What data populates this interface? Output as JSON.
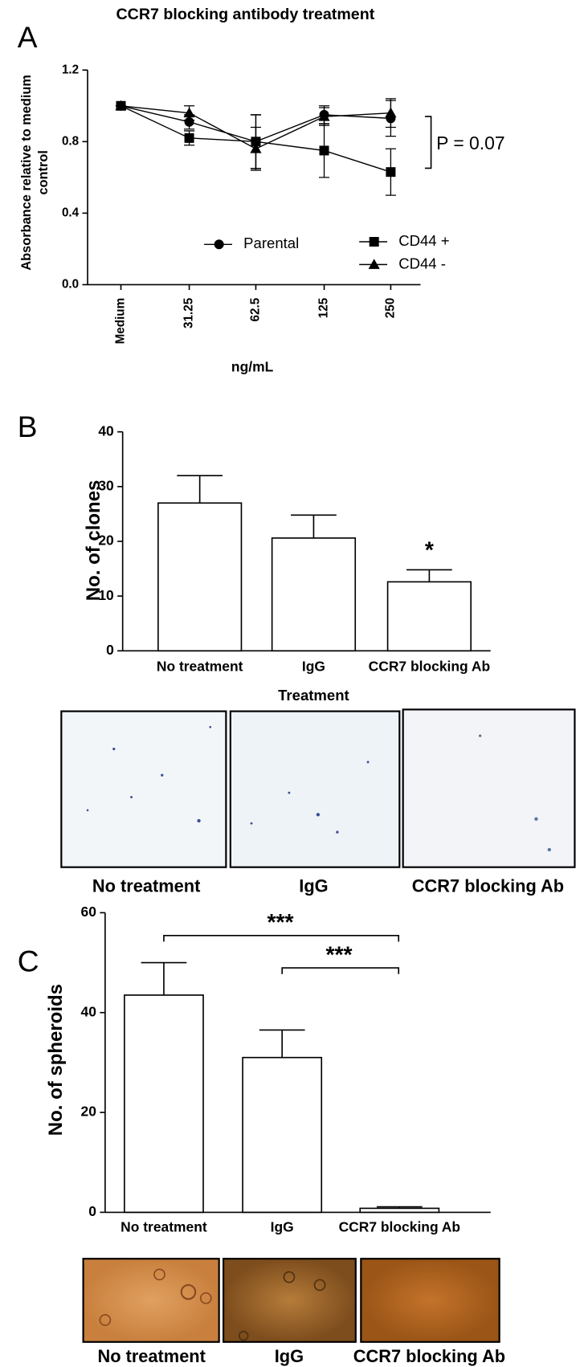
{
  "chart_data": [
    {
      "type": "line",
      "panel": "A",
      "title": "CCR7 blocking antibody treatment",
      "x_label": "ng/mL",
      "y_label": "Absorbance relative to medium control",
      "categories": [
        "Medium",
        "31.25",
        "62.5",
        "125",
        "250"
      ],
      "ylim": [
        0,
        1.2
      ],
      "yticks": [
        {
          "value": 0,
          "label": "0.0"
        },
        0.4,
        0.8,
        1.2
      ],
      "series": [
        {
          "name": "Parental",
          "color": "#000000",
          "marker": "circle",
          "values": [
            1.0,
            0.91,
            0.8,
            0.95,
            0.93
          ],
          "errors": [
            0,
            0.04,
            0.15,
            0.05,
            0.1
          ]
        },
        {
          "name": "CD44 +",
          "color": "#000000",
          "marker": "square",
          "values": [
            1.0,
            0.82,
            0.8,
            0.75,
            0.63
          ],
          "errors": [
            0,
            0.04,
            0.15,
            0.15,
            0.13
          ]
        },
        {
          "name": "CD44 -",
          "color": "#000000",
          "marker": "triangle",
          "values": [
            1.0,
            0.96,
            0.76,
            0.94,
            0.96
          ],
          "errors": [
            0,
            0.04,
            0.12,
            0.05,
            0.08
          ]
        }
      ],
      "annotation": "P = 0.07"
    },
    {
      "type": "bar",
      "panel": "B",
      "x_label": "Treatment",
      "y_label": "No. of clones",
      "categories": [
        "No treatment",
        "IgG",
        "CCR7 blocking Ab"
      ],
      "values": [
        27,
        20.6,
        12.6
      ],
      "errors": [
        5,
        4.2,
        2.2
      ],
      "color": "#ffffff",
      "ylim": [
        0,
        40
      ],
      "yticks": [
        0,
        10,
        20,
        30,
        40
      ],
      "annotations": [
        "*"
      ],
      "images": [
        "No treatment",
        "IgG",
        "CCR7 blocking Ab"
      ]
    },
    {
      "type": "bar",
      "panel": "C",
      "y_label": "No. of spheroids",
      "categories": [
        "No treatment",
        "IgG",
        "CCR7 blocking Ab"
      ],
      "values": [
        43.5,
        31,
        0.8
      ],
      "errors": [
        6.5,
        5.5,
        0.3
      ],
      "color": "#ffffff",
      "ylim": [
        0,
        60
      ],
      "yticks": [
        0,
        20,
        40,
        60
      ],
      "annotations": [
        "***",
        "***"
      ],
      "images": [
        "No treatment",
        "IgG",
        "CCR7 blocking Ab"
      ]
    }
  ]
}
